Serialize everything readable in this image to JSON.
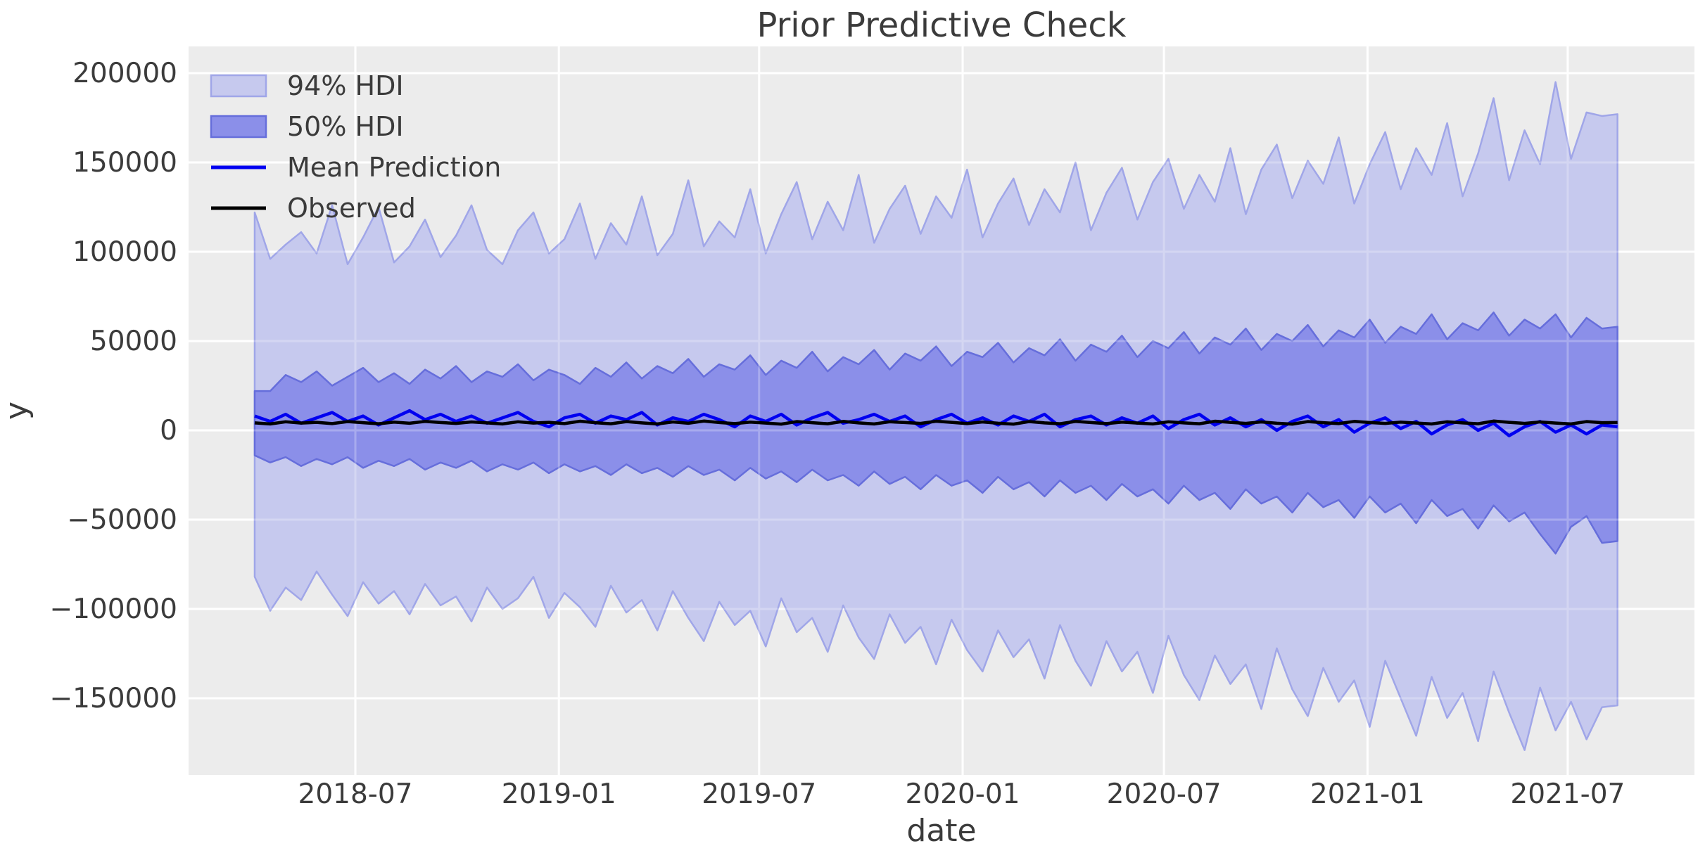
{
  "title": "Prior Predictive Check",
  "axes": {
    "xlabel": "date",
    "ylabel": "y",
    "x_ticks": [
      {
        "date": "2018-07-01",
        "label": "2018-07"
      },
      {
        "date": "2019-01-01",
        "label": "2019-01"
      },
      {
        "date": "2019-07-01",
        "label": "2019-07"
      },
      {
        "date": "2020-01-01",
        "label": "2020-01"
      },
      {
        "date": "2020-07-01",
        "label": "2020-07"
      },
      {
        "date": "2021-01-01",
        "label": "2021-01"
      },
      {
        "date": "2021-07-01",
        "label": "2021-07"
      }
    ],
    "y_ticks": [
      {
        "value": 200000,
        "label": "200000"
      },
      {
        "value": 150000,
        "label": "150000"
      },
      {
        "value": 100000,
        "label": "100000"
      },
      {
        "value": 50000,
        "label": "50000"
      },
      {
        "value": 0,
        "label": "0"
      },
      {
        "value": -50000,
        "label": "−50000"
      },
      {
        "value": -100000,
        "label": "−100000"
      },
      {
        "value": -150000,
        "label": "−150000"
      }
    ]
  },
  "legend": {
    "items": [
      {
        "label": "94% HDI",
        "type": "patch",
        "key": "hdi94"
      },
      {
        "label": "50% HDI",
        "type": "patch",
        "key": "hdi50"
      },
      {
        "label": "Mean Prediction",
        "type": "line",
        "key": "mean"
      },
      {
        "label": "Observed",
        "type": "line",
        "key": "observed"
      }
    ]
  },
  "colors": {
    "background": "#ffffff",
    "plot_background": "#ececec",
    "grid": "#ffffff",
    "hdi94_fill": "#c6c9ee",
    "hdi94_edge": "#a0a6e8",
    "hdi50_fill": "#8b8fe9",
    "hdi50_edge": "#666edb",
    "mean_line": "#0000f0",
    "observed_line": "#000000",
    "text": "#3b3b3b"
  },
  "chart_data": {
    "type": "line",
    "title": "Prior Predictive Check",
    "xlabel": "date",
    "ylabel": "y",
    "grid": true,
    "legend_position": "upper left",
    "ylim": [
      -193000,
      215000
    ],
    "xlim": [
      "2018-01-25",
      "2021-10-20"
    ],
    "x": [
      "2018-04-01",
      "2018-04-15",
      "2018-04-29",
      "2018-05-13",
      "2018-05-27",
      "2018-06-10",
      "2018-06-24",
      "2018-07-08",
      "2018-07-22",
      "2018-08-05",
      "2018-08-19",
      "2018-09-02",
      "2018-09-16",
      "2018-09-30",
      "2018-10-14",
      "2018-10-28",
      "2018-11-11",
      "2018-11-25",
      "2018-12-09",
      "2018-12-23",
      "2019-01-06",
      "2019-01-20",
      "2019-02-03",
      "2019-02-17",
      "2019-03-03",
      "2019-03-17",
      "2019-03-31",
      "2019-04-14",
      "2019-04-28",
      "2019-05-12",
      "2019-05-26",
      "2019-06-09",
      "2019-06-23",
      "2019-07-07",
      "2019-07-21",
      "2019-08-04",
      "2019-08-18",
      "2019-09-01",
      "2019-09-15",
      "2019-09-29",
      "2019-10-13",
      "2019-10-27",
      "2019-11-10",
      "2019-11-24",
      "2019-12-08",
      "2019-12-22",
      "2020-01-05",
      "2020-01-19",
      "2020-02-02",
      "2020-02-16",
      "2020-03-01",
      "2020-03-15",
      "2020-03-29",
      "2020-04-12",
      "2020-04-26",
      "2020-05-10",
      "2020-05-24",
      "2020-06-07",
      "2020-06-21",
      "2020-07-05",
      "2020-07-19",
      "2020-08-02",
      "2020-08-16",
      "2020-08-30",
      "2020-09-13",
      "2020-09-27",
      "2020-10-11",
      "2020-10-25",
      "2020-11-08",
      "2020-11-22",
      "2020-12-06",
      "2020-12-20",
      "2021-01-03",
      "2021-01-17",
      "2021-01-31",
      "2021-02-14",
      "2021-02-28",
      "2021-03-14",
      "2021-03-28",
      "2021-04-11",
      "2021-04-25",
      "2021-05-09",
      "2021-05-23",
      "2021-06-06",
      "2021-06-20",
      "2021-07-04",
      "2021-07-18",
      "2021-08-01",
      "2021-08-15"
    ],
    "series": [
      {
        "key": "hdi94_upper",
        "name": "94% HDI upper",
        "values": [
          122000,
          96000,
          104000,
          111000,
          99000,
          126000,
          93000,
          108000,
          125000,
          94000,
          103000,
          118000,
          97000,
          109000,
          126000,
          101000,
          93000,
          112000,
          122000,
          99000,
          107000,
          127000,
          96000,
          116000,
          104000,
          131000,
          98000,
          110000,
          140000,
          103000,
          117000,
          108000,
          135000,
          99000,
          121000,
          139000,
          107000,
          128000,
          112000,
          143000,
          105000,
          124000,
          137000,
          110000,
          131000,
          119000,
          146000,
          108000,
          127000,
          141000,
          115000,
          135000,
          122000,
          150000,
          112000,
          133000,
          147000,
          118000,
          139000,
          152000,
          124000,
          143000,
          128000,
          158000,
          121000,
          146000,
          160000,
          130000,
          151000,
          138000,
          164000,
          127000,
          149000,
          167000,
          135000,
          158000,
          143000,
          172000,
          131000,
          155000,
          186000,
          140000,
          168000,
          149000,
          195000,
          152000,
          178000,
          176000,
          177000
        ]
      },
      {
        "key": "hdi94_lower",
        "name": "94% HDI lower",
        "values": [
          -82000,
          -101000,
          -88000,
          -95000,
          -79000,
          -92000,
          -104000,
          -85000,
          -97000,
          -90000,
          -103000,
          -86000,
          -98000,
          -93000,
          -107000,
          -88000,
          -100000,
          -94000,
          -82000,
          -105000,
          -91000,
          -99000,
          -110000,
          -87000,
          -102000,
          -95000,
          -112000,
          -90000,
          -105000,
          -118000,
          -96000,
          -109000,
          -101000,
          -121000,
          -94000,
          -113000,
          -105000,
          -124000,
          -98000,
          -116000,
          -128000,
          -103000,
          -119000,
          -110000,
          -131000,
          -106000,
          -123000,
          -135000,
          -112000,
          -127000,
          -117000,
          -139000,
          -109000,
          -129000,
          -143000,
          -118000,
          -135000,
          -124000,
          -147000,
          -115000,
          -137000,
          -151000,
          -126000,
          -142000,
          -131000,
          -156000,
          -122000,
          -145000,
          -160000,
          -133000,
          -152000,
          -140000,
          -166000,
          -129000,
          -150000,
          -171000,
          -138000,
          -161000,
          -147000,
          -174000,
          -135000,
          -158000,
          -179000,
          -144000,
          -168000,
          -152000,
          -173000,
          -155000,
          -154000
        ]
      },
      {
        "key": "hdi50_upper",
        "name": "50% HDI upper",
        "values": [
          22000,
          22000,
          31000,
          27000,
          33000,
          25000,
          30000,
          35000,
          27000,
          32000,
          26000,
          34000,
          29000,
          36000,
          27000,
          33000,
          30000,
          37000,
          28000,
          34000,
          31000,
          26000,
          35000,
          30000,
          38000,
          29000,
          36000,
          32000,
          40000,
          30000,
          37000,
          34000,
          42000,
          31000,
          39000,
          35000,
          44000,
          33000,
          41000,
          37000,
          45000,
          34000,
          43000,
          39000,
          47000,
          36000,
          44000,
          41000,
          49000,
          38000,
          46000,
          42000,
          51000,
          39000,
          48000,
          44000,
          53000,
          41000,
          50000,
          46000,
          55000,
          43000,
          52000,
          48000,
          57000,
          45000,
          54000,
          50000,
          59000,
          47000,
          56000,
          52000,
          62000,
          49000,
          58000,
          54000,
          65000,
          51000,
          60000,
          56000,
          66000,
          53000,
          62000,
          57000,
          65000,
          52000,
          63000,
          57000,
          58000
        ]
      },
      {
        "key": "hdi50_lower",
        "name": "50% HDI lower",
        "values": [
          -14000,
          -18000,
          -15000,
          -20000,
          -16000,
          -19000,
          -15000,
          -21000,
          -17000,
          -20000,
          -16000,
          -22000,
          -18000,
          -21000,
          -17000,
          -23000,
          -19000,
          -22000,
          -18000,
          -24000,
          -19000,
          -23000,
          -20000,
          -25000,
          -19000,
          -24000,
          -21000,
          -26000,
          -20000,
          -25000,
          -22000,
          -28000,
          -21000,
          -27000,
          -23000,
          -29000,
          -22000,
          -28000,
          -25000,
          -31000,
          -23000,
          -30000,
          -26000,
          -33000,
          -25000,
          -31000,
          -28000,
          -35000,
          -26000,
          -33000,
          -29000,
          -37000,
          -28000,
          -35000,
          -31000,
          -39000,
          -30000,
          -37000,
          -33000,
          -41000,
          -31000,
          -39000,
          -35000,
          -44000,
          -33000,
          -41000,
          -37000,
          -46000,
          -35000,
          -43000,
          -39000,
          -49000,
          -37000,
          -46000,
          -41000,
          -52000,
          -39000,
          -48000,
          -44000,
          -55000,
          -42000,
          -51000,
          -46000,
          -58000,
          -69000,
          -54000,
          -48000,
          -63000,
          -62000
        ]
      },
      {
        "key": "mean",
        "name": "Mean Prediction",
        "values": [
          8000,
          5000,
          9000,
          4000,
          7000,
          10000,
          5000,
          8000,
          3000,
          7000,
          11000,
          6000,
          9000,
          5000,
          8000,
          4000,
          7000,
          10000,
          5000,
          2000,
          7000,
          9000,
          4000,
          8000,
          6000,
          10000,
          3000,
          7000,
          5000,
          9000,
          6000,
          2000,
          8000,
          5000,
          9000,
          3000,
          7000,
          10000,
          4000,
          6000,
          9000,
          5000,
          8000,
          2000,
          6000,
          9000,
          4000,
          7000,
          3000,
          8000,
          5000,
          9000,
          2000,
          6000,
          8000,
          3000,
          7000,
          4000,
          8000,
          1000,
          6000,
          9000,
          3000,
          7000,
          2000,
          6000,
          0,
          5000,
          8000,
          2000,
          6000,
          -1000,
          4000,
          7000,
          1000,
          5000,
          -2000,
          3000,
          6000,
          0,
          4000,
          -3000,
          2000,
          5000,
          -1000,
          3000,
          -2000,
          3000,
          2000
        ]
      },
      {
        "key": "observed",
        "name": "Observed",
        "values": [
          4200,
          3600,
          4800,
          4100,
          4500,
          3800,
          4900,
          4300,
          3700,
          4600,
          4000,
          5000,
          4400,
          3900,
          4700,
          4200,
          3600,
          4800,
          4100,
          4500,
          3800,
          5100,
          4300,
          3700,
          4900,
          4200,
          3600,
          4700,
          4000,
          5200,
          4400,
          3800,
          4600,
          4100,
          3500,
          4900,
          4300,
          3700,
          5000,
          4200,
          3600,
          4800,
          4400,
          3900,
          5100,
          4500,
          3800,
          4700,
          4000,
          3500,
          4900,
          4200,
          3700,
          5000,
          4400,
          3800,
          4600,
          4100,
          3600,
          4800,
          4200,
          3700,
          5100,
          4500,
          3900,
          4700,
          4000,
          3500,
          4900,
          4300,
          3800,
          5000,
          4400,
          3900,
          4600,
          4100,
          3600,
          4800,
          4200,
          3700,
          5200,
          4500,
          3900,
          4700,
          4100,
          3600,
          4900,
          4300,
          4400
        ]
      }
    ],
    "bands": [
      {
        "name": "94% HDI",
        "upper": "hdi94_upper",
        "lower": "hdi94_lower"
      },
      {
        "name": "50% HDI",
        "upper": "hdi50_upper",
        "lower": "hdi50_lower"
      }
    ]
  }
}
